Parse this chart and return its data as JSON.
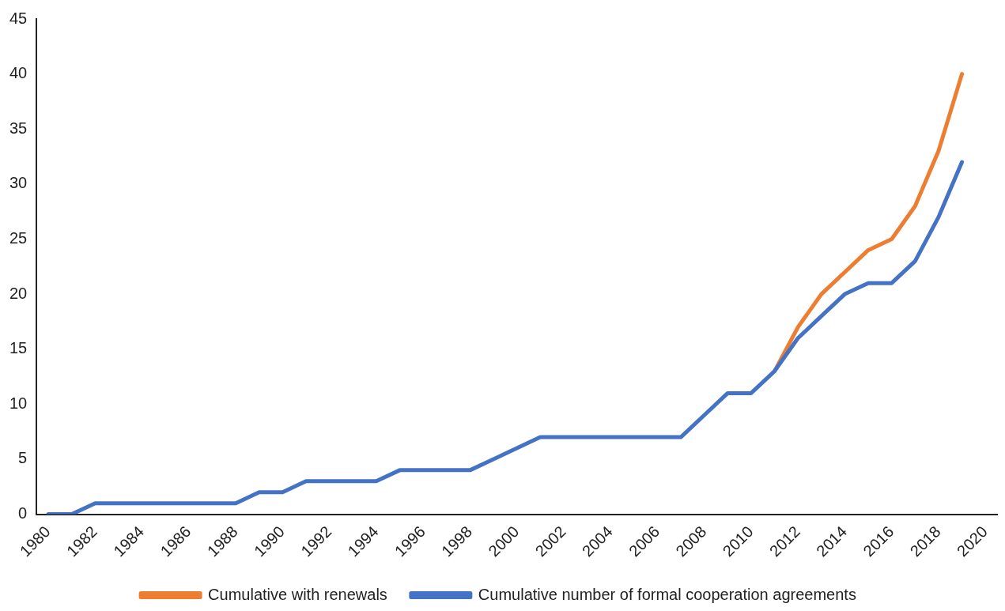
{
  "chart_data": {
    "type": "line",
    "categories": [
      "1980",
      null,
      "1982",
      null,
      "1984",
      null,
      "1986",
      null,
      "1988",
      null,
      "1990",
      null,
      "1992",
      null,
      "1994",
      null,
      "1996",
      null,
      "1998",
      null,
      "2000",
      null,
      "2002",
      null,
      "2004",
      null,
      "2006",
      null,
      "2008",
      null,
      "2010",
      null,
      "2012",
      null,
      "2014",
      null,
      "2016",
      null,
      "2018",
      null,
      "2020"
    ],
    "series": [
      {
        "name": "Cumulative with renewals",
        "color": "#ed7d31",
        "values": [
          null,
          null,
          null,
          null,
          null,
          null,
          null,
          null,
          null,
          null,
          null,
          null,
          null,
          null,
          null,
          null,
          null,
          null,
          null,
          null,
          null,
          null,
          null,
          null,
          null,
          null,
          null,
          null,
          null,
          null,
          null,
          13,
          17,
          20,
          22,
          24,
          25,
          28,
          33,
          40,
          null
        ]
      },
      {
        "name": "Cumulative number of formal cooperation agreements",
        "color": "#4472c4",
        "values": [
          0,
          0,
          1,
          1,
          1,
          1,
          1,
          1,
          1,
          2,
          2,
          3,
          3,
          3,
          3,
          4,
          4,
          4,
          4,
          5,
          6,
          7,
          7,
          7,
          7,
          7,
          7,
          7,
          9,
          11,
          11,
          13,
          16,
          18,
          20,
          21,
          21,
          23,
          27,
          32,
          null
        ]
      }
    ],
    "ylim": [
      0,
      45
    ],
    "yticks": [
      0,
      5,
      10,
      15,
      20,
      25,
      30,
      35,
      40,
      45
    ],
    "grid": false,
    "legend": "bottom",
    "marker": "none",
    "line_style": "solid"
  }
}
